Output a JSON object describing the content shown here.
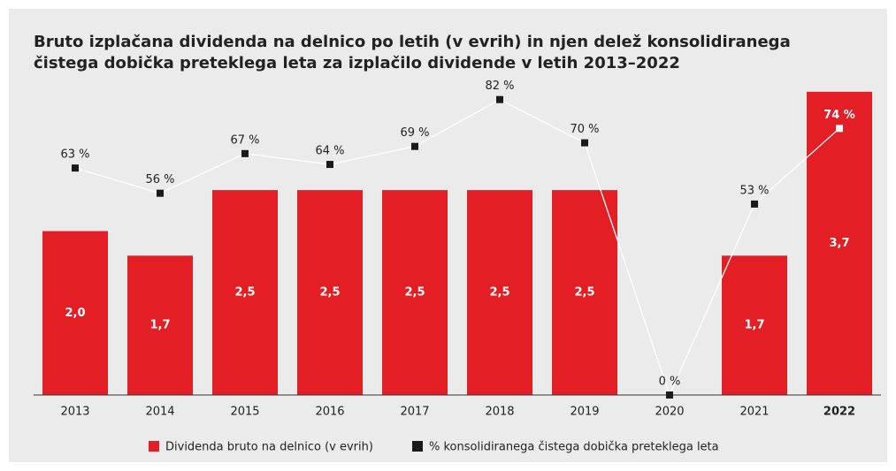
{
  "chart_data": {
    "type": "bar_line",
    "title": [
      "Bruto izplačana dividenda na delnico po letih (v evrih) in njen delež konsolidiranega",
      "čistega dobička preteklega leta za izplačilo dividende v letih 2013–2022"
    ],
    "categories": [
      "2013",
      "2014",
      "2015",
      "2016",
      "2017",
      "2018",
      "2019",
      "2020",
      "2021",
      "2022"
    ],
    "series": [
      {
        "name": "Dividenda bruto na delnico (v evrih)",
        "color": "#e31e24",
        "type": "bar",
        "values": [
          2.0,
          1.7,
          2.5,
          2.5,
          2.5,
          2.5,
          2.5,
          null,
          1.7,
          3.7
        ],
        "value_labels": [
          "2,0",
          "1,7",
          "2,5",
          "2,5",
          "2,5",
          "2,5",
          "2,5",
          null,
          "1,7",
          "3,7"
        ]
      },
      {
        "name": "% konsolidiranega čistega dobička preteklega leta",
        "color": "#1a1a1a",
        "type": "line",
        "axis": "y2",
        "values": [
          63,
          56,
          67,
          64,
          69,
          82,
          70,
          0,
          53,
          74
        ],
        "value_labels": [
          "63 %",
          "56 %",
          "67 %",
          "64 %",
          "69 %",
          "82 %",
          "70 %",
          "0 %",
          "53 %",
          "74 %"
        ]
      }
    ],
    "ylim": [
      0,
      4
    ],
    "y2lim": [
      0,
      91
    ],
    "legend": "bottom"
  }
}
